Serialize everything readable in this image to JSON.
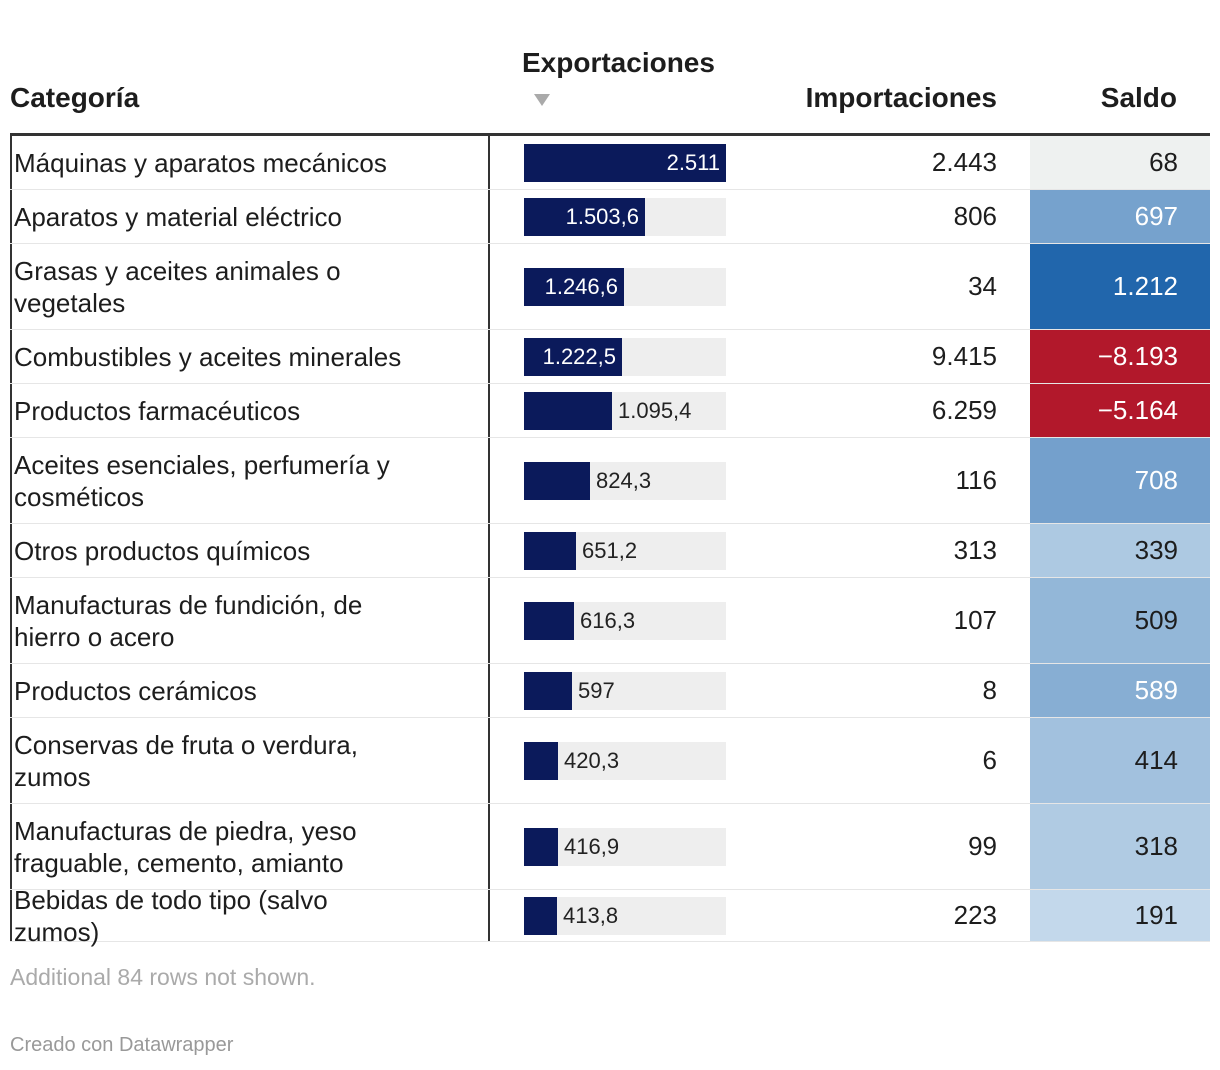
{
  "chart_data": {
    "type": "table",
    "columns": [
      "Categoría",
      "Exportaciones",
      "Importaciones",
      "Saldo"
    ],
    "sort": {
      "column": "Exportaciones",
      "direction": "descending"
    },
    "export_max": 2511,
    "rows": [
      {
        "category": "Máquinas y aparatos mecánicos",
        "exports": 2511,
        "exports_label": "2.511",
        "imports": "2.443",
        "balance": 68,
        "balance_label": "68"
      },
      {
        "category": "Aparatos y material eléctrico",
        "exports": 1503.6,
        "exports_label": "1.503,6",
        "imports": "806",
        "balance": 697,
        "balance_label": "697"
      },
      {
        "category": "Grasas y aceites animales o vegetales",
        "exports": 1246.6,
        "exports_label": "1.246,6",
        "imports": "34",
        "balance": 1212,
        "balance_label": "1.212"
      },
      {
        "category": "Combustibles y aceites minerales",
        "exports": 1222.5,
        "exports_label": "1.222,5",
        "imports": "9.415",
        "balance": -8193,
        "balance_label": "−8.193"
      },
      {
        "category": "Productos farmacéuticos",
        "exports": 1095.4,
        "exports_label": "1.095,4",
        "imports": "6.259",
        "balance": -5164,
        "balance_label": "−5.164"
      },
      {
        "category": "Aceites esenciales, perfumería y cosméticos",
        "exports": 824.3,
        "exports_label": "824,3",
        "imports": "116",
        "balance": 708,
        "balance_label": "708"
      },
      {
        "category": "Otros productos químicos",
        "exports": 651.2,
        "exports_label": "651,2",
        "imports": "313",
        "balance": 339,
        "balance_label": "339"
      },
      {
        "category": "Manufacturas de fundición, de hierro o acero",
        "exports": 616.3,
        "exports_label": "616,3",
        "imports": "107",
        "balance": 509,
        "balance_label": "509"
      },
      {
        "category": "Productos cerámicos",
        "exports": 597,
        "exports_label": "597",
        "imports": "8",
        "balance": 589,
        "balance_label": "589"
      },
      {
        "category": "Conservas de fruta o verdura, zumos",
        "exports": 420.3,
        "exports_label": "420,3",
        "imports": "6",
        "balance": 414,
        "balance_label": "414"
      },
      {
        "category": "Manufacturas de piedra, yeso fraguable, cemento, amianto",
        "exports": 416.9,
        "exports_label": "416,9",
        "imports": "99",
        "balance": 318,
        "balance_label": "318"
      },
      {
        "category": "Bebidas de todo tipo (salvo zumos)",
        "exports": 413.8,
        "exports_label": "413,8",
        "imports": "223",
        "balance": 191,
        "balance_label": "191"
      }
    ]
  },
  "colors": {
    "bar": "#0b1a5b",
    "track": "#eeeeee",
    "positive": "#2166ac",
    "negative": "#b2182b",
    "neutral": "#eef1f0"
  },
  "note": "Additional 84 rows not shown.",
  "credit": "Creado con Datawrapper"
}
